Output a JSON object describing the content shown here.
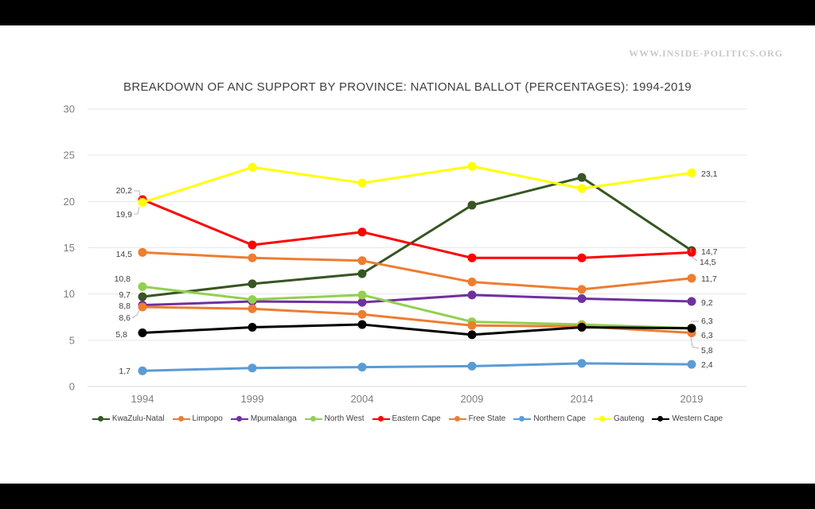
{
  "watermark": "WWW.INSIDE-POLITICS.ORG",
  "chart_data": {
    "type": "line",
    "title": "BREAKDOWN OF ANC SUPPORT BY PROVINCE: NATIONAL BALLOT (PERCENTAGES): 1994-2019",
    "xlabel": "",
    "ylabel": "",
    "categories": [
      "1994",
      "1999",
      "2004",
      "2009",
      "2014",
      "2019"
    ],
    "ylim": [
      0,
      30
    ],
    "yticks": [
      0,
      5,
      10,
      15,
      20,
      25,
      30
    ],
    "grid": true,
    "legend_position": "bottom",
    "series": [
      {
        "name": "KwaZulu-Natal",
        "color": "#375623",
        "values": [
          9.7,
          11.1,
          12.2,
          19.6,
          22.6,
          14.7
        ],
        "labels": [
          {
            "i": 0,
            "text": "9,7"
          },
          {
            "i": 5,
            "text": "14,7"
          }
        ]
      },
      {
        "name": "Limpopo",
        "color": "#ed7d31",
        "values": [
          14.5,
          13.9,
          13.6,
          11.3,
          10.5,
          11.7
        ],
        "labels": [
          {
            "i": 0,
            "text": "14,5"
          },
          {
            "i": 5,
            "text": "11,7"
          }
        ]
      },
      {
        "name": "Mpumalanga",
        "color": "#7030a0",
        "values": [
          8.8,
          9.2,
          9.1,
          9.9,
          9.5,
          9.2
        ],
        "labels": [
          {
            "i": 0,
            "text": "8,8"
          },
          {
            "i": 5,
            "text": "9,2"
          }
        ]
      },
      {
        "name": "North West",
        "color": "#92d050",
        "values": [
          10.8,
          9.4,
          9.9,
          7.0,
          6.7,
          6.3
        ],
        "labels": [
          {
            "i": 0,
            "text": "10,8"
          },
          {
            "i": 5,
            "text": "6,3"
          }
        ]
      },
      {
        "name": "Eastern Cape",
        "color": "#ff0000",
        "values": [
          20.2,
          15.3,
          16.7,
          13.9,
          13.9,
          14.5
        ],
        "labels": [
          {
            "i": 0,
            "text": "20,2"
          },
          {
            "i": 5,
            "text": "14,5"
          }
        ]
      },
      {
        "name": "Free State",
        "color": "#ed7d31",
        "values": [
          8.6,
          8.4,
          7.8,
          6.6,
          6.5,
          5.8
        ],
        "labels": [
          {
            "i": 0,
            "text": "8,6"
          },
          {
            "i": 5,
            "text": "5,8"
          }
        ]
      },
      {
        "name": "Northern Cape",
        "color": "#5b9bd5",
        "values": [
          1.7,
          2.0,
          2.1,
          2.2,
          2.5,
          2.4
        ],
        "labels": [
          {
            "i": 0,
            "text": "1,7"
          },
          {
            "i": 5,
            "text": "2,4"
          }
        ]
      },
      {
        "name": "Gauteng",
        "color": "#ffff00",
        "values": [
          19.9,
          23.7,
          22.0,
          23.8,
          21.4,
          23.1
        ],
        "labels": [
          {
            "i": 0,
            "text": "19,9"
          },
          {
            "i": 5,
            "text": "23,1"
          }
        ]
      },
      {
        "name": "Western Cape",
        "color": "#000000",
        "values": [
          5.8,
          6.4,
          6.7,
          5.6,
          6.4,
          6.3
        ],
        "labels": [
          {
            "i": 0,
            "text": "5,8"
          },
          {
            "i": 5,
            "text": "6,3"
          }
        ]
      }
    ]
  }
}
